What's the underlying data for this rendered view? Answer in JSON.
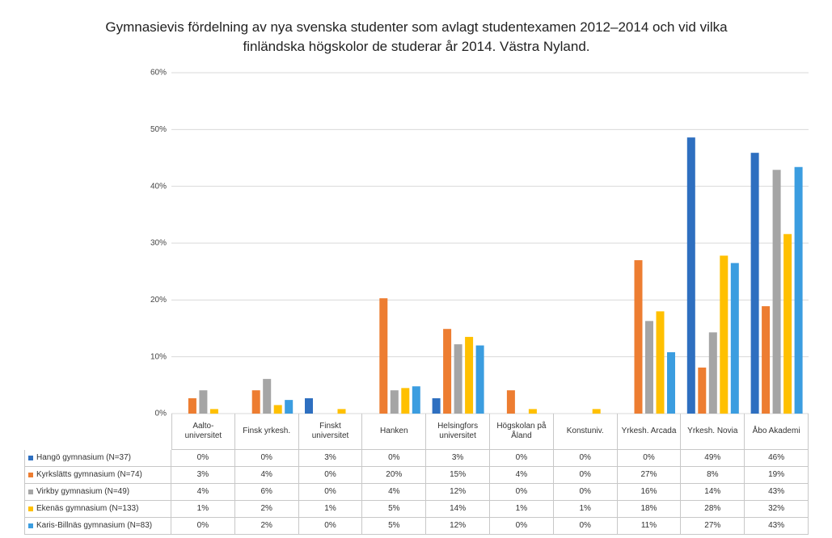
{
  "chart_data": {
    "type": "bar",
    "title": "Gymnasievis fördelning av nya svenska studenter som avlagt studentexamen 2012–2014 och vid vilka finländska högskolor de studerar år 2014. Västra Nyland.",
    "categories": [
      "Aalto-universitet",
      "Finsk yrkesh.",
      "Finskt universitet",
      "Hanken",
      "Helsingfors universitet",
      "Högskolan på Åland",
      "Konstuniv.",
      "Yrkesh. Arcada",
      "Yrkesh. Novia",
      "Åbo Akademi"
    ],
    "series": [
      {
        "name": "Hangö gymnasium (N=37)",
        "color": "#2e6fc0",
        "values": [
          0,
          0,
          2.7,
          0,
          2.7,
          0,
          0,
          0,
          48.6,
          45.9
        ],
        "value_labels": [
          "0%",
          "0%",
          "3%",
          "0%",
          "3%",
          "0%",
          "0%",
          "0%",
          "49%",
          "46%"
        ]
      },
      {
        "name": "Kyrkslätts gymnasium (N=74)",
        "color": "#ed7d31",
        "values": [
          2.7,
          4.1,
          0,
          20.3,
          14.9,
          4.1,
          0,
          27.0,
          8.1,
          18.9
        ],
        "value_labels": [
          "3%",
          "4%",
          "0%",
          "20%",
          "15%",
          "4%",
          "0%",
          "27%",
          "8%",
          "19%"
        ]
      },
      {
        "name": "Virkby gymnasium (N=49)",
        "color": "#a5a5a5",
        "values": [
          4.1,
          6.1,
          0,
          4.1,
          12.2,
          0,
          0,
          16.3,
          14.3,
          42.9
        ],
        "value_labels": [
          "4%",
          "6%",
          "0%",
          "4%",
          "12%",
          "0%",
          "0%",
          "16%",
          "14%",
          "43%"
        ]
      },
      {
        "name": "Ekenäs gymnasium (N=133)",
        "color": "#ffc000",
        "values": [
          0.8,
          1.5,
          0.8,
          4.5,
          13.5,
          0.8,
          0.8,
          18.0,
          27.8,
          31.6
        ],
        "value_labels": [
          "1%",
          "2%",
          "1%",
          "5%",
          "14%",
          "1%",
          "1%",
          "18%",
          "28%",
          "32%"
        ]
      },
      {
        "name": "Karis-Billnäs gymnasium (N=83)",
        "color": "#3b9de0",
        "values": [
          0,
          2.4,
          0,
          4.8,
          12.0,
          0,
          0,
          10.8,
          26.5,
          43.4
        ],
        "value_labels": [
          "0%",
          "2%",
          "0%",
          "5%",
          "12%",
          "0%",
          "0%",
          "11%",
          "27%",
          "43%"
        ]
      }
    ],
    "ylim": [
      0,
      60
    ],
    "yticks": [
      {
        "value": 0,
        "label": "0%"
      },
      {
        "value": 10,
        "label": "10%"
      },
      {
        "value": 20,
        "label": "20%"
      },
      {
        "value": 30,
        "label": "30%"
      },
      {
        "value": 40,
        "label": "40%"
      },
      {
        "value": 50,
        "label": "50%"
      },
      {
        "value": 60,
        "label": "60%"
      }
    ],
    "grid": true
  }
}
